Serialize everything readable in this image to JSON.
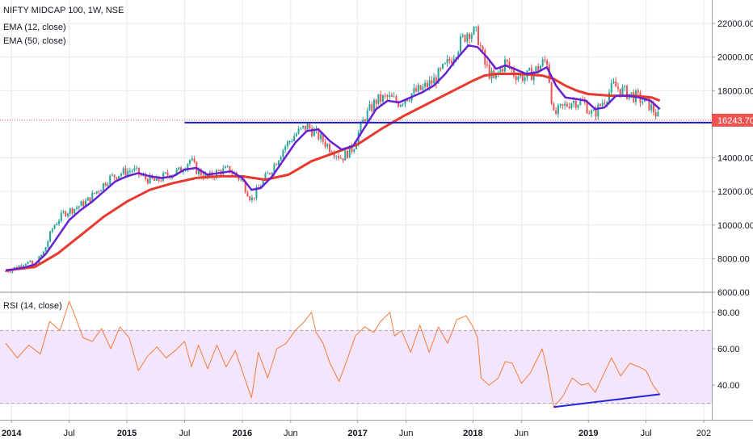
{
  "legend": {
    "title": "NIFTY MIDCAP 100, 1W, NSE",
    "ema12": "EMA (12, close)",
    "ema50": "EMA (50, close)",
    "rsi": "RSI (14, close)"
  },
  "colors": {
    "up": "#26a69a",
    "down": "#ef5350",
    "ema12": "#6a1fd1",
    "ema50": "#e8392f",
    "rsi_line": "#f57c3a",
    "rsi_band": "#f3e5fb",
    "support_line": "#1c1fc9",
    "rsi_trendline": "#2323e0",
    "last_price_line": "#ef5350",
    "last_badge": "#ef5350",
    "grid": "#e8eaef",
    "axis_text": "#131722"
  },
  "chart_data": [
    {
      "type": "candlestick",
      "title": "NIFTY MIDCAP 100, 1W, NSE",
      "x_ticks": [
        "2014",
        "Jul",
        "2015",
        "Jul",
        "2016",
        "Jun",
        "2017",
        "Jun",
        "2018",
        "Jun",
        "2019",
        "Jul",
        "202"
      ],
      "x_tick_bold": [
        "2014",
        "2015",
        "2016",
        "2017",
        "2018",
        "2019"
      ],
      "y_ticks": [
        "22000.00",
        "20000.00",
        "18000.00",
        "14000.00",
        "12000.00",
        "10000.00",
        "8000.00",
        "6000.00"
      ],
      "ylim": [
        6000,
        23400
      ],
      "grid": true,
      "last_price": "16243.70",
      "support_level": 16100,
      "close_path": [
        [
          2013.95,
          7250
        ],
        [
          2014.05,
          7500
        ],
        [
          2014.12,
          7800
        ],
        [
          2014.2,
          7600
        ],
        [
          2014.28,
          8400
        ],
        [
          2014.36,
          9900
        ],
        [
          2014.45,
          10700
        ],
        [
          2014.55,
          11000
        ],
        [
          2014.65,
          11400
        ],
        [
          2014.75,
          12100
        ],
        [
          2014.85,
          12800
        ],
        [
          2014.95,
          13100
        ],
        [
          2015.05,
          13300
        ],
        [
          2015.15,
          12800
        ],
        [
          2015.25,
          12600
        ],
        [
          2015.35,
          13000
        ],
        [
          2015.45,
          13200
        ],
        [
          2015.55,
          13900
        ],
        [
          2015.6,
          13300
        ],
        [
          2015.7,
          12800
        ],
        [
          2015.8,
          13200
        ],
        [
          2015.9,
          13300
        ],
        [
          2016.0,
          12600
        ],
        [
          2016.08,
          11500
        ],
        [
          2016.16,
          12400
        ],
        [
          2016.26,
          13400
        ],
        [
          2016.36,
          14600
        ],
        [
          2016.46,
          15400
        ],
        [
          2016.56,
          15900
        ],
        [
          2016.66,
          15300
        ],
        [
          2016.76,
          14600
        ],
        [
          2016.86,
          14000
        ],
        [
          2016.96,
          14600
        ],
        [
          2017.06,
          16400
        ],
        [
          2017.16,
          17400
        ],
        [
          2017.26,
          17600
        ],
        [
          2017.36,
          17300
        ],
        [
          2017.46,
          17800
        ],
        [
          2017.56,
          18100
        ],
        [
          2017.66,
          18600
        ],
        [
          2017.76,
          19400
        ],
        [
          2017.86,
          20500
        ],
        [
          2017.96,
          21600
        ],
        [
          2018.04,
          21300
        ],
        [
          2018.1,
          19600
        ],
        [
          2018.18,
          18600
        ],
        [
          2018.28,
          19700
        ],
        [
          2018.36,
          19000
        ],
        [
          2018.46,
          18800
        ],
        [
          2018.56,
          19300
        ],
        [
          2018.64,
          19900
        ],
        [
          2018.7,
          16500
        ],
        [
          2018.76,
          16900
        ],
        [
          2018.86,
          17400
        ],
        [
          2018.96,
          17300
        ],
        [
          2019.04,
          16500
        ],
        [
          2019.12,
          17300
        ],
        [
          2019.22,
          18300
        ],
        [
          2019.32,
          17900
        ],
        [
          2019.42,
          17600
        ],
        [
          2019.52,
          17200
        ],
        [
          2019.58,
          16700
        ],
        [
          2019.62,
          16240
        ]
      ],
      "ema12_path": [
        [
          2013.95,
          7300
        ],
        [
          2014.1,
          7450
        ],
        [
          2014.2,
          7650
        ],
        [
          2014.3,
          8300
        ],
        [
          2014.4,
          9300
        ],
        [
          2014.5,
          10300
        ],
        [
          2014.6,
          10900
        ],
        [
          2014.7,
          11400
        ],
        [
          2014.8,
          12000
        ],
        [
          2014.9,
          12600
        ],
        [
          2015.0,
          12900
        ],
        [
          2015.1,
          13100
        ],
        [
          2015.2,
          12900
        ],
        [
          2015.3,
          12800
        ],
        [
          2015.4,
          12900
        ],
        [
          2015.5,
          13300
        ],
        [
          2015.6,
          13400
        ],
        [
          2015.7,
          13000
        ],
        [
          2015.8,
          13100
        ],
        [
          2015.9,
          13200
        ],
        [
          2016.0,
          12800
        ],
        [
          2016.08,
          12100
        ],
        [
          2016.16,
          12200
        ],
        [
          2016.26,
          12900
        ],
        [
          2016.36,
          13900
        ],
        [
          2016.46,
          14900
        ],
        [
          2016.56,
          15600
        ],
        [
          2016.66,
          15700
        ],
        [
          2016.76,
          15000
        ],
        [
          2016.86,
          14500
        ],
        [
          2016.96,
          14700
        ],
        [
          2017.06,
          15800
        ],
        [
          2017.16,
          16900
        ],
        [
          2017.26,
          17400
        ],
        [
          2017.36,
          17300
        ],
        [
          2017.46,
          17600
        ],
        [
          2017.56,
          17900
        ],
        [
          2017.66,
          18300
        ],
        [
          2017.76,
          19000
        ],
        [
          2017.86,
          19900
        ],
        [
          2017.96,
          20700
        ],
        [
          2018.04,
          20600
        ],
        [
          2018.12,
          20000
        ],
        [
          2018.2,
          19300
        ],
        [
          2018.28,
          19500
        ],
        [
          2018.36,
          19300
        ],
        [
          2018.46,
          19000
        ],
        [
          2018.56,
          19100
        ],
        [
          2018.64,
          19400
        ],
        [
          2018.72,
          18300
        ],
        [
          2018.8,
          17600
        ],
        [
          2018.9,
          17500
        ],
        [
          2018.98,
          17400
        ],
        [
          2019.06,
          16900
        ],
        [
          2019.14,
          17000
        ],
        [
          2019.24,
          17700
        ],
        [
          2019.34,
          17700
        ],
        [
          2019.44,
          17600
        ],
        [
          2019.54,
          17400
        ],
        [
          2019.62,
          16900
        ]
      ],
      "ema50_path": [
        [
          2013.95,
          7300
        ],
        [
          2014.2,
          7500
        ],
        [
          2014.4,
          8300
        ],
        [
          2014.6,
          9400
        ],
        [
          2014.8,
          10500
        ],
        [
          2015.0,
          11400
        ],
        [
          2015.2,
          12100
        ],
        [
          2015.4,
          12500
        ],
        [
          2015.6,
          12800
        ],
        [
          2015.8,
          12900
        ],
        [
          2016.0,
          12900
        ],
        [
          2016.2,
          12700
        ],
        [
          2016.4,
          13000
        ],
        [
          2016.6,
          13800
        ],
        [
          2016.8,
          14300
        ],
        [
          2017.0,
          14800
        ],
        [
          2017.2,
          15700
        ],
        [
          2017.4,
          16500
        ],
        [
          2017.6,
          17200
        ],
        [
          2017.8,
          17900
        ],
        [
          2018.0,
          18600
        ],
        [
          2018.1,
          18900
        ],
        [
          2018.2,
          19000
        ],
        [
          2018.4,
          19000
        ],
        [
          2018.6,
          18900
        ],
        [
          2018.7,
          18700
        ],
        [
          2018.8,
          18300
        ],
        [
          2018.9,
          18000
        ],
        [
          2019.0,
          17800
        ],
        [
          2019.2,
          17700
        ],
        [
          2019.4,
          17700
        ],
        [
          2019.55,
          17600
        ],
        [
          2019.62,
          17400
        ]
      ]
    },
    {
      "type": "line",
      "title": "RSI (14, close)",
      "y_ticks": [
        "80.00",
        "60.00",
        "40.00"
      ],
      "ylim": [
        21,
        91
      ],
      "bands": [
        30,
        70
      ],
      "grid": true,
      "rsi_path": [
        [
          2013.95,
          63
        ],
        [
          2014.05,
          55
        ],
        [
          2014.15,
          62
        ],
        [
          2014.25,
          57
        ],
        [
          2014.33,
          75
        ],
        [
          2014.42,
          70
        ],
        [
          2014.5,
          86
        ],
        [
          2014.55,
          78
        ],
        [
          2014.62,
          66
        ],
        [
          2014.7,
          64
        ],
        [
          2014.78,
          71
        ],
        [
          2014.86,
          60
        ],
        [
          2014.94,
          72
        ],
        [
          2015.02,
          66
        ],
        [
          2015.1,
          48
        ],
        [
          2015.18,
          56
        ],
        [
          2015.26,
          61
        ],
        [
          2015.34,
          55
        ],
        [
          2015.42,
          59
        ],
        [
          2015.5,
          64
        ],
        [
          2015.56,
          50
        ],
        [
          2015.62,
          62
        ],
        [
          2015.7,
          49
        ],
        [
          2015.78,
          62
        ],
        [
          2015.86,
          50
        ],
        [
          2015.94,
          59
        ],
        [
          2016.02,
          44
        ],
        [
          2016.08,
          33
        ],
        [
          2016.14,
          58
        ],
        [
          2016.22,
          44
        ],
        [
          2016.3,
          60
        ],
        [
          2016.38,
          63
        ],
        [
          2016.46,
          70
        ],
        [
          2016.54,
          75
        ],
        [
          2016.6,
          80
        ],
        [
          2016.64,
          69
        ],
        [
          2016.7,
          63
        ],
        [
          2016.76,
          52
        ],
        [
          2016.84,
          42
        ],
        [
          2016.92,
          56
        ],
        [
          2016.98,
          67
        ],
        [
          2017.06,
          72
        ],
        [
          2017.14,
          69
        ],
        [
          2017.2,
          75
        ],
        [
          2017.28,
          80
        ],
        [
          2017.32,
          67
        ],
        [
          2017.38,
          70
        ],
        [
          2017.46,
          58
        ],
        [
          2017.54,
          73
        ],
        [
          2017.62,
          58
        ],
        [
          2017.7,
          72
        ],
        [
          2017.78,
          63
        ],
        [
          2017.86,
          76
        ],
        [
          2017.94,
          78
        ],
        [
          2018.0,
          72
        ],
        [
          2018.04,
          66
        ],
        [
          2018.07,
          44
        ],
        [
          2018.14,
          40
        ],
        [
          2018.22,
          44
        ],
        [
          2018.28,
          53
        ],
        [
          2018.34,
          52
        ],
        [
          2018.42,
          41
        ],
        [
          2018.5,
          47
        ],
        [
          2018.6,
          60
        ],
        [
          2018.64,
          49
        ],
        [
          2018.7,
          28
        ],
        [
          2018.78,
          34
        ],
        [
          2018.86,
          44
        ],
        [
          2018.94,
          40
        ],
        [
          2019.0,
          41
        ],
        [
          2019.06,
          36
        ],
        [
          2019.14,
          47
        ],
        [
          2019.2,
          55
        ],
        [
          2019.28,
          45
        ],
        [
          2019.36,
          52
        ],
        [
          2019.44,
          50
        ],
        [
          2019.5,
          48
        ],
        [
          2019.56,
          40
        ],
        [
          2019.62,
          35
        ]
      ]
    }
  ]
}
